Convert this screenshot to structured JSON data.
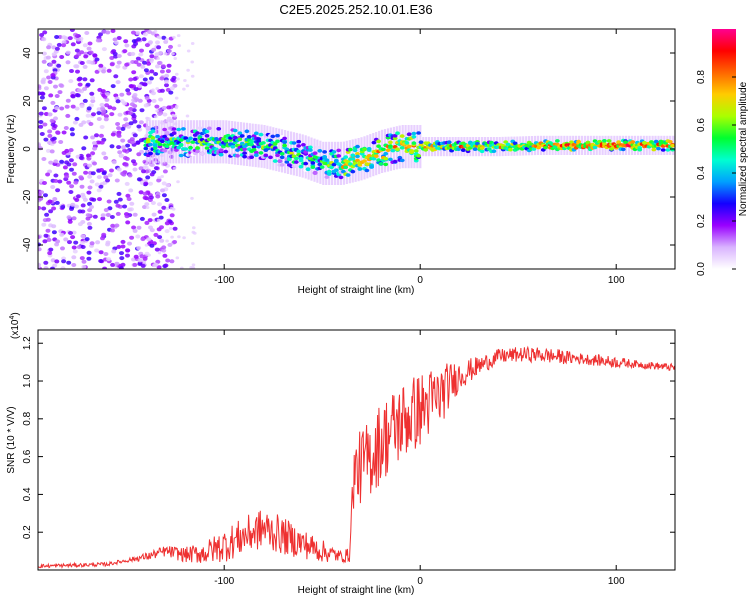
{
  "title": "C2E5.2025.252.10.01.E36",
  "chart_data": [
    {
      "type": "heatmap",
      "title": "C2E5.2025.252.10.01.E36",
      "xlabel": "Height of straight line (km)",
      "ylabel": "Frequency (Hz)",
      "xlim": [
        -195,
        130
      ],
      "ylim": [
        -50,
        50
      ],
      "xticks": [
        -100,
        0,
        100
      ],
      "yticks": [
        -40,
        -20,
        0,
        20,
        40
      ],
      "colorbar": {
        "label": "Normalized spectral amplitude",
        "range": [
          0,
          1
        ],
        "ticks": [
          0.0,
          0.2,
          0.4,
          0.6,
          0.8
        ],
        "tick_labels": [
          "0.0",
          "0.2",
          "0.4",
          "0.6",
          "0.8"
        ],
        "colormap": [
          "#ffffff",
          "#d9b3ff",
          "#9900ff",
          "#1400ff",
          "#00a0ff",
          "#00ffd0",
          "#00ff30",
          "#aaff00",
          "#ffcc00",
          "#ff6600",
          "#ff0000",
          "#ff0090"
        ]
      },
      "ridge": {
        "x": [
          -140,
          -120,
          -100,
          -80,
          -60,
          -50,
          -40,
          -30,
          -20,
          -10,
          0,
          10,
          20,
          40,
          60,
          80,
          100,
          130
        ],
        "freq": [
          3,
          3,
          3,
          1,
          -3,
          -6,
          -6,
          -4,
          -1,
          1,
          1,
          1,
          1,
          1,
          1.5,
          1.5,
          1.5,
          1.5
        ]
      }
    },
    {
      "type": "line",
      "xlabel": "Height of straight line (km)",
      "ylabel": "SNR (10 * V/V)",
      "y_multiplier": "(x10",
      "y_multiplier_exp": "4",
      "y_multiplier_close": ")",
      "xlim": [
        -195,
        130
      ],
      "ylim": [
        0,
        1.27
      ],
      "xticks": [
        -100,
        0,
        100
      ],
      "yticks": [
        0.2,
        0.4,
        0.6,
        0.8,
        1.0,
        1.2
      ],
      "color": "#ee3030",
      "series": [
        {
          "name": "SNR",
          "x": [
            -195,
            -160,
            -150,
            -140,
            -130,
            -120,
            -110,
            -100,
            -90,
            -80,
            -70,
            -60,
            -50,
            -40,
            -36,
            -34,
            -30,
            -25,
            -20,
            -10,
            0,
            10,
            15,
            20,
            30,
            40,
            50,
            60,
            70,
            80,
            90,
            100,
            110,
            120,
            130
          ],
          "y": [
            0.02,
            0.03,
            0.05,
            0.07,
            0.1,
            0.08,
            0.09,
            0.13,
            0.18,
            0.22,
            0.18,
            0.14,
            0.1,
            0.07,
            0.08,
            0.5,
            0.55,
            0.6,
            0.68,
            0.78,
            0.85,
            0.92,
            0.98,
            1.03,
            1.08,
            1.13,
            1.14,
            1.14,
            1.13,
            1.12,
            1.11,
            1.1,
            1.09,
            1.08,
            1.07
          ],
          "noise": [
            0.01,
            0.01,
            0.01,
            0.02,
            0.03,
            0.04,
            0.06,
            0.09,
            0.1,
            0.11,
            0.1,
            0.08,
            0.06,
            0.03,
            0.04,
            0.18,
            0.2,
            0.21,
            0.22,
            0.22,
            0.2,
            0.17,
            0.12,
            0.08,
            0.05,
            0.04,
            0.04,
            0.04,
            0.04,
            0.03,
            0.03,
            0.03,
            0.02,
            0.02,
            0.02
          ]
        }
      ]
    }
  ]
}
